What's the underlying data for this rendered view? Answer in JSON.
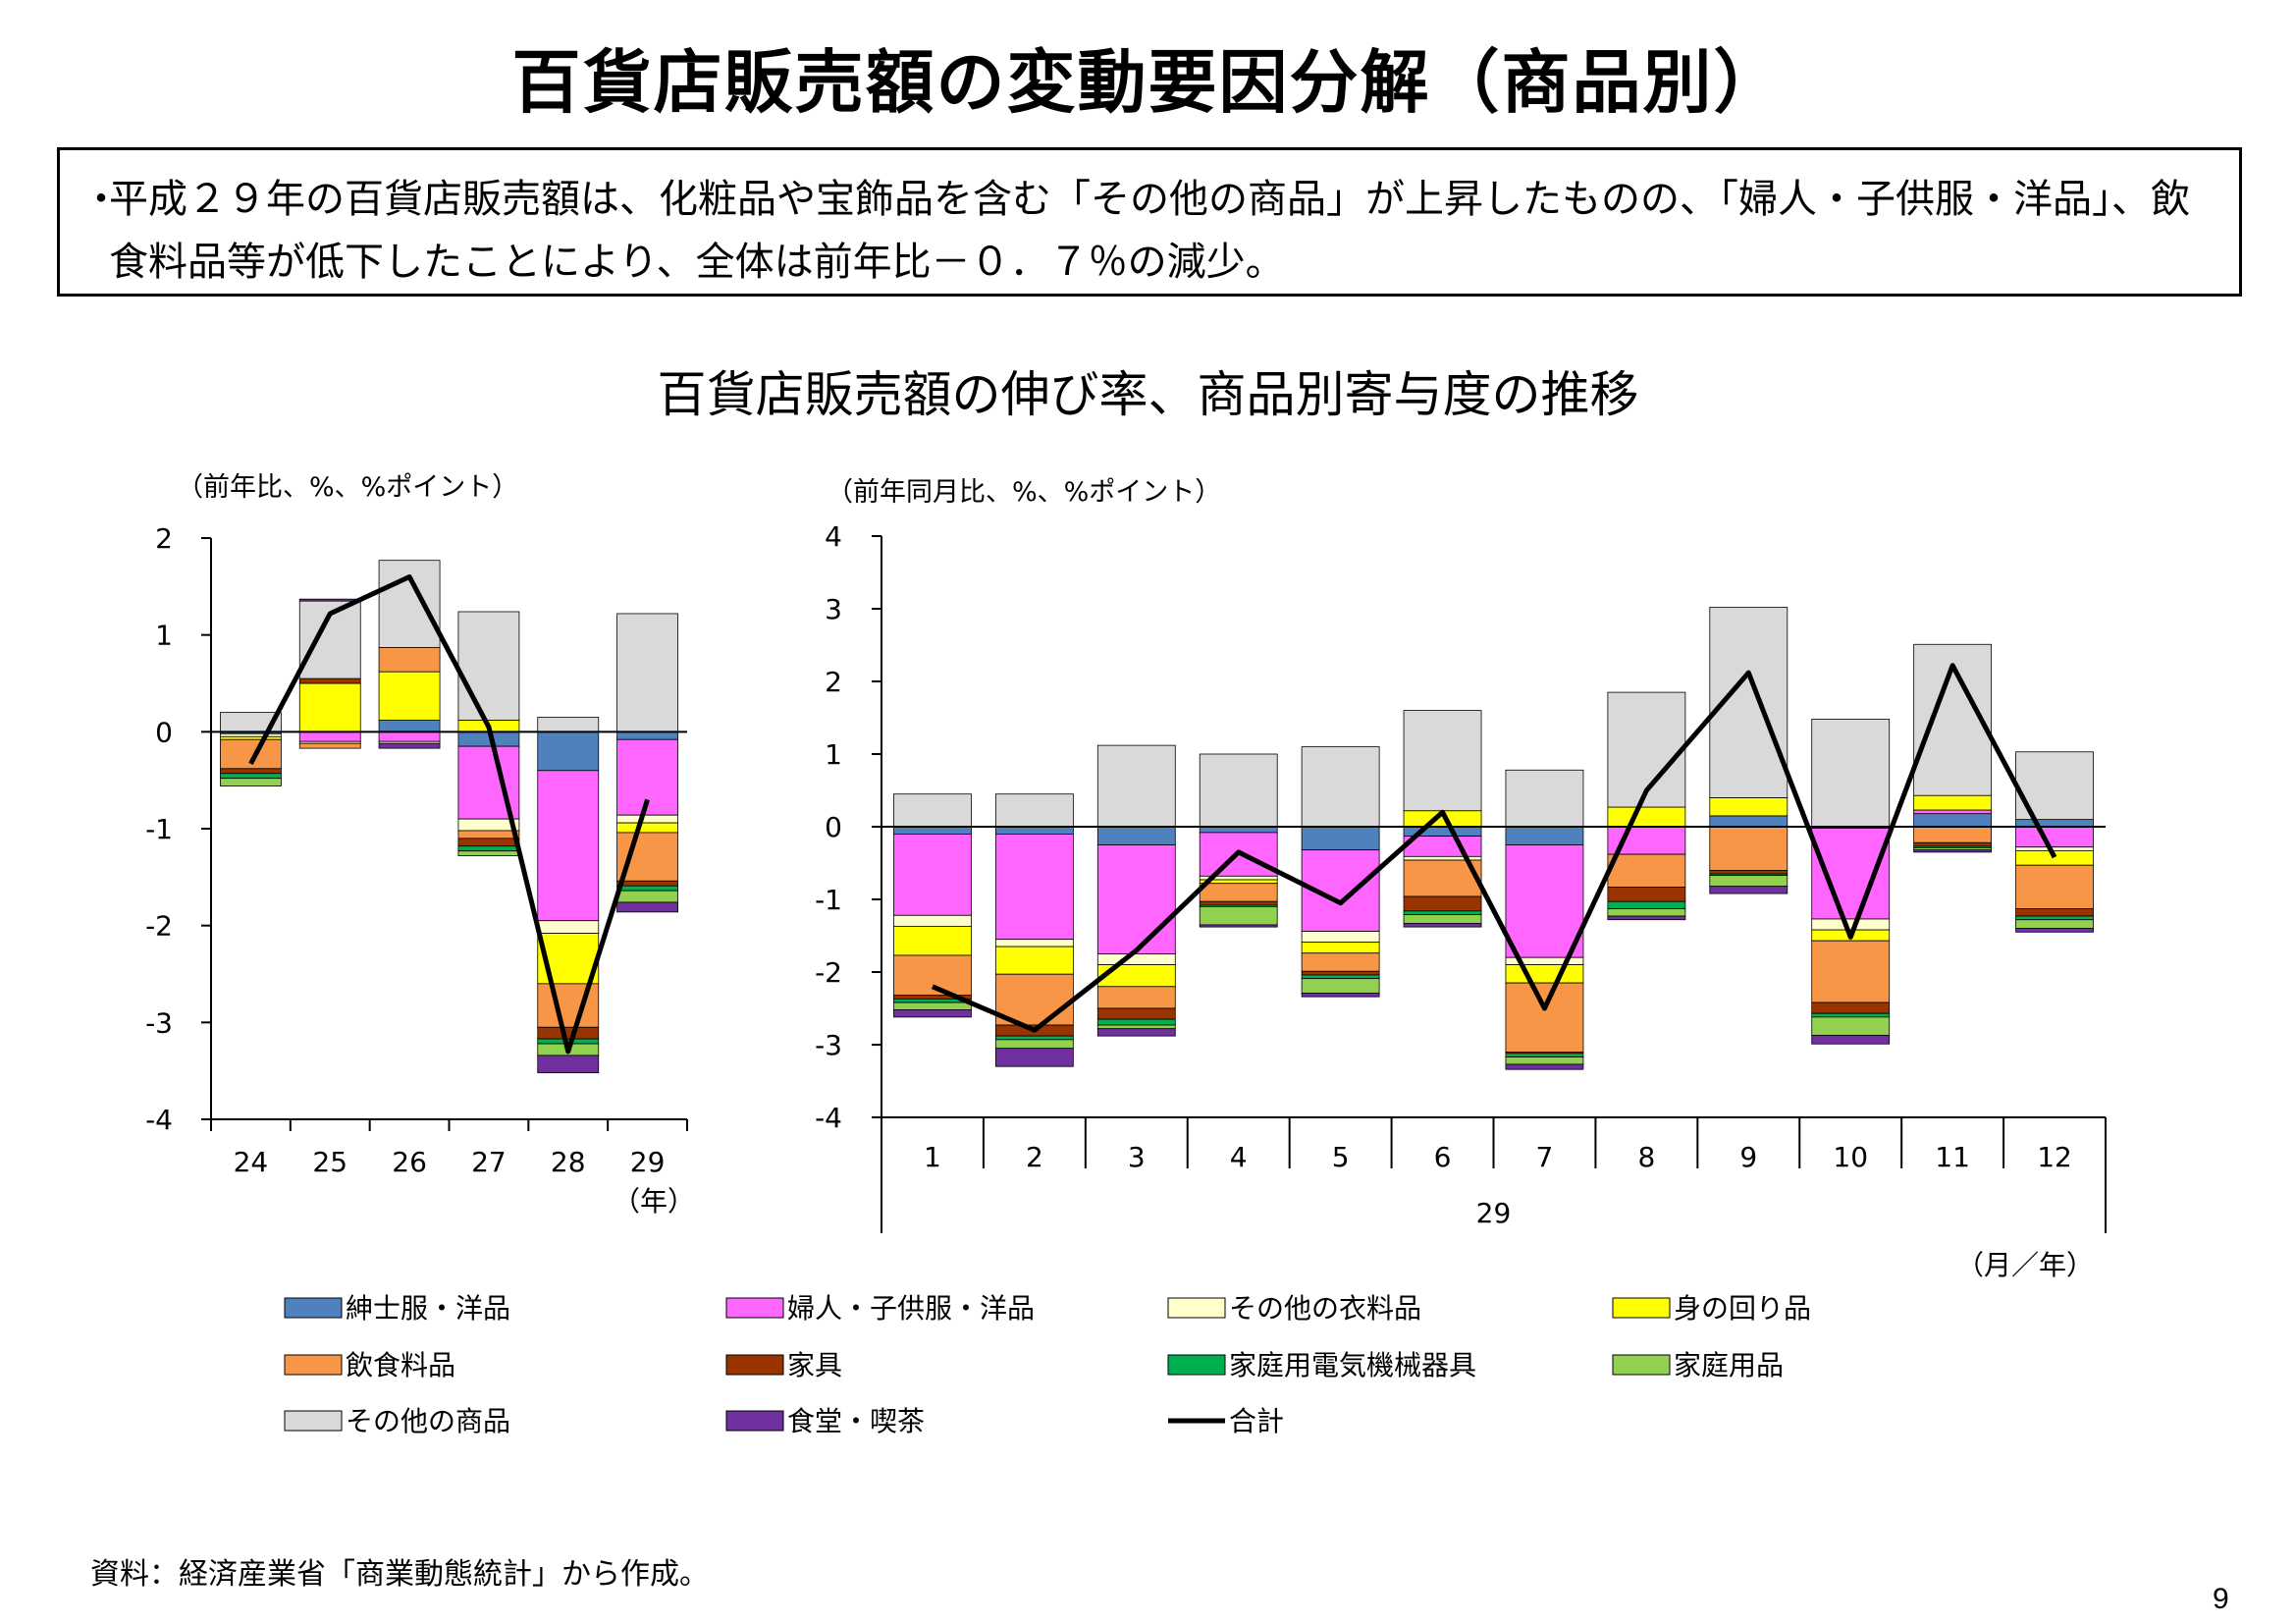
{
  "page": {
    "title": "百貨店販売額の変動要因分解（商品別）",
    "summary_bullet": "・",
    "summary": "平成２９年の百貨店販売額は、化粧品や宝飾品を含む「その他の商品」が上昇したものの、「婦人・子供服・洋品」、飲食料品等が低下したことにより、全体は前年比－０．７％の減少。",
    "chart_title": "百貨店販売額の伸び率、商品別寄与度の推移",
    "source": "資料：経済産業省「商業動態統計」から作成。",
    "page_number": "9"
  },
  "legend": [
    {
      "label": "紳士服・洋品",
      "color": "#4f81bd"
    },
    {
      "label": "婦人・子供服・洋品",
      "color": "#ff66ff"
    },
    {
      "label": "その他の衣料品",
      "color": "#ffffcc"
    },
    {
      "label": "身の回り品",
      "color": "#ffff00"
    },
    {
      "label": "飲食料品",
      "color": "#f79646"
    },
    {
      "label": "家具",
      "color": "#993300"
    },
    {
      "label": "家庭用電気機械器具",
      "color": "#00b050"
    },
    {
      "label": "家庭用品",
      "color": "#92d050"
    },
    {
      "label": "その他の商品",
      "color": "#d9d9d9"
    },
    {
      "label": "食堂・喫茶",
      "color": "#7030a0"
    },
    {
      "label": "合計",
      "color": "#000000"
    }
  ],
  "chart_data": [
    {
      "type": "bar",
      "stacked": true,
      "ylabel": "（前年比、%、%ポイント）",
      "xlabel": "（年）",
      "ylim": [
        -4,
        2
      ],
      "yticks": [
        "2",
        "1",
        "0",
        "-1",
        "-2",
        "-3",
        "-4"
      ],
      "categories": [
        "24",
        "25",
        "26",
        "27",
        "28",
        "29"
      ],
      "series": [
        {
          "name": "紳士服・洋品",
          "values": [
            -0.02,
            0.0,
            0.12,
            -0.15,
            -0.4,
            -0.08
          ]
        },
        {
          "name": "婦人・子供服・洋品",
          "values": [
            0.0,
            -0.1,
            -0.1,
            -0.75,
            -1.55,
            -0.78
          ]
        },
        {
          "name": "その他の衣料品",
          "values": [
            -0.03,
            -0.02,
            -0.02,
            -0.12,
            -0.13,
            -0.08
          ]
        },
        {
          "name": "身の回り品",
          "values": [
            -0.03,
            0.5,
            0.5,
            0.12,
            -0.52,
            -0.1
          ]
        },
        {
          "name": "飲食料品",
          "values": [
            -0.3,
            -0.05,
            0.25,
            -0.08,
            -0.45,
            -0.5
          ]
        },
        {
          "name": "家具",
          "values": [
            -0.05,
            0.05,
            0.0,
            -0.08,
            -0.12,
            -0.05
          ]
        },
        {
          "name": "家庭用電気機械器具",
          "values": [
            -0.05,
            0.0,
            0.0,
            -0.05,
            -0.05,
            -0.05
          ]
        },
        {
          "name": "家庭用品",
          "values": [
            -0.08,
            0.0,
            0.0,
            -0.05,
            -0.12,
            -0.12
          ]
        },
        {
          "name": "その他の商品",
          "values": [
            0.2,
            0.8,
            0.9,
            1.12,
            0.15,
            1.22
          ]
        },
        {
          "name": "食堂・喫茶",
          "values": [
            0.0,
            0.02,
            -0.05,
            0.0,
            -0.18,
            -0.1
          ]
        }
      ],
      "total": {
        "name": "合計",
        "values": [
          -0.33,
          1.22,
          1.6,
          0.05,
          -3.3,
          -0.7
        ]
      }
    },
    {
      "type": "bar",
      "stacked": true,
      "ylabel": "（前年同月比、%、%ポイント）",
      "xlabel": "（月／年）",
      "year_label": "29",
      "ylim": [
        -4,
        4
      ],
      "yticks": [
        "4",
        "3",
        "2",
        "1",
        "0",
        "-1",
        "-2",
        "-3",
        "-4"
      ],
      "categories": [
        "1",
        "2",
        "3",
        "4",
        "5",
        "6",
        "7",
        "8",
        "9",
        "10",
        "11",
        "12"
      ],
      "series": [
        {
          "name": "紳士服・洋品",
          "values": [
            -0.1,
            -0.1,
            -0.25,
            -0.08,
            -0.32,
            -0.13,
            -0.25,
            0.0,
            0.15,
            -0.02,
            0.18,
            0.1
          ]
        },
        {
          "name": "婦人・子供服・洋品",
          "values": [
            -1.12,
            -1.45,
            -1.5,
            -0.6,
            -1.12,
            -0.28,
            -1.55,
            -0.38,
            0.0,
            -1.25,
            0.05,
            -0.28
          ]
        },
        {
          "name": "その他の衣料品",
          "values": [
            -0.15,
            -0.1,
            -0.15,
            -0.05,
            -0.15,
            -0.05,
            -0.1,
            0.0,
            0.0,
            -0.15,
            0.0,
            -0.05
          ]
        },
        {
          "name": "身の回り品",
          "values": [
            -0.4,
            -0.38,
            -0.3,
            -0.05,
            -0.15,
            0.22,
            -0.25,
            0.27,
            0.25,
            -0.15,
            0.2,
            -0.2
          ]
        },
        {
          "name": "飲食料品",
          "values": [
            -0.55,
            -0.7,
            -0.3,
            -0.25,
            -0.25,
            -0.5,
            -0.95,
            -0.45,
            -0.6,
            -0.85,
            -0.22,
            -0.6
          ]
        },
        {
          "name": "家具",
          "values": [
            -0.05,
            -0.15,
            -0.15,
            -0.05,
            -0.05,
            -0.2,
            -0.02,
            -0.2,
            -0.05,
            -0.15,
            -0.05,
            -0.1
          ]
        },
        {
          "name": "家庭用電気機械器具",
          "values": [
            -0.05,
            -0.05,
            -0.08,
            -0.02,
            -0.05,
            -0.05,
            -0.05,
            -0.1,
            -0.02,
            -0.05,
            -0.02,
            -0.05
          ]
        },
        {
          "name": "家庭用品",
          "values": [
            -0.1,
            -0.12,
            -0.05,
            -0.25,
            -0.2,
            -0.12,
            -0.1,
            -0.1,
            -0.15,
            -0.25,
            -0.03,
            -0.12
          ]
        },
        {
          "name": "その他の商品",
          "values": [
            0.45,
            0.45,
            1.12,
            1.0,
            1.1,
            1.38,
            0.78,
            1.58,
            2.62,
            1.48,
            2.08,
            0.93
          ]
        },
        {
          "name": "食堂・喫茶",
          "values": [
            -0.1,
            -0.25,
            -0.1,
            -0.03,
            -0.05,
            -0.05,
            -0.07,
            -0.05,
            -0.1,
            -0.12,
            -0.03,
            -0.05
          ]
        }
      ],
      "total": {
        "name": "合計",
        "values": [
          -2.2,
          -2.8,
          -1.7,
          -0.35,
          -1.05,
          0.2,
          -2.5,
          0.5,
          2.12,
          -1.52,
          2.22,
          -0.42
        ]
      }
    }
  ]
}
